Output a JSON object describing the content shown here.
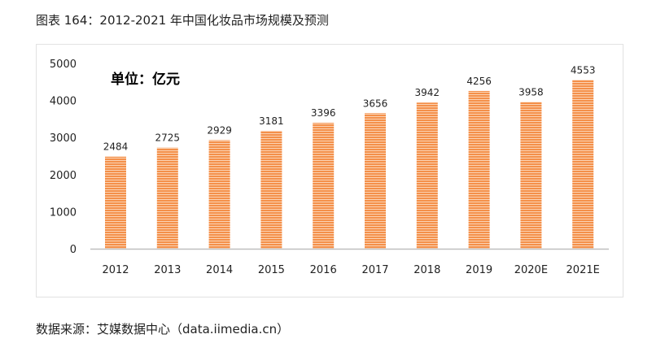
{
  "title": "图表 164：2012-2021 年中国化妆品市场规模及预测",
  "source": "数据来源：艾媒数据中心（data.iimedia.cn）",
  "chart_data": {
    "type": "bar",
    "title": "",
    "unit_label": "单位：亿元",
    "categories": [
      "2012",
      "2013",
      "2014",
      "2015",
      "2016",
      "2017",
      "2018",
      "2019",
      "2020E",
      "2021E"
    ],
    "values": [
      2484,
      2725,
      2929,
      3181,
      3396,
      3656,
      3942,
      4256,
      3958,
      4553
    ],
    "ylim": [
      0,
      5000
    ],
    "yticks": [
      0,
      1000,
      2000,
      3000,
      4000,
      5000
    ],
    "grid": false,
    "bar_color": "#f4904a",
    "data_labels": true
  }
}
